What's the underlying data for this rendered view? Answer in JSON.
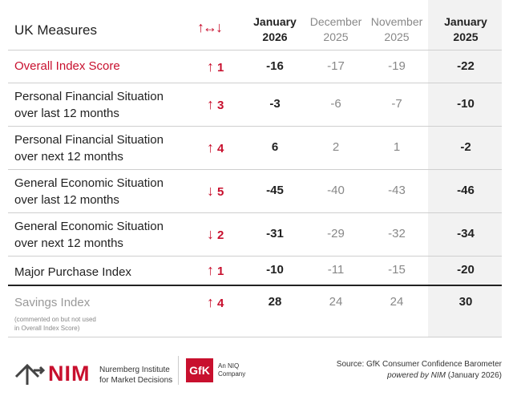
{
  "chart_data": {
    "type": "table",
    "title": "UK Measures",
    "change_header": "↑↔↓",
    "columns": [
      {
        "line1": "January",
        "line2": "2026",
        "bold": true
      },
      {
        "line1": "December",
        "line2": "2025",
        "bold": false
      },
      {
        "line1": "November",
        "line2": "2025",
        "bold": false
      },
      {
        "line1": "January",
        "line2": "2025",
        "bold": true
      }
    ],
    "rows": [
      {
        "label1": "Overall Index Score",
        "label2": "",
        "direction": "up",
        "change": "1",
        "values": [
          "-16",
          "-17",
          "-19",
          "-22"
        ]
      },
      {
        "label1": "Personal Financial Situation",
        "label2": "over last 12 months",
        "direction": "up",
        "change": "3",
        "values": [
          "-3",
          "-6",
          "-7",
          "-10"
        ]
      },
      {
        "label1": "Personal Financial Situation",
        "label2": "over next 12 months",
        "direction": "up",
        "change": "4",
        "values": [
          "6",
          "2",
          "1",
          "-2"
        ]
      },
      {
        "label1": "General Economic Situation",
        "label2": "over last 12 months",
        "direction": "down",
        "change": "5",
        "values": [
          "-45",
          "-40",
          "-43",
          "-46"
        ]
      },
      {
        "label1": "General Economic Situation",
        "label2": "over next 12 months",
        "direction": "down",
        "change": "2",
        "values": [
          "-31",
          "-29",
          "-32",
          "-34"
        ]
      },
      {
        "label1": "Major Purchase Index",
        "label2": "",
        "direction": "up",
        "change": "1",
        "values": [
          "-10",
          "-11",
          "-15",
          "-20"
        ]
      },
      {
        "label1": "Savings Index",
        "label2": "",
        "direction": "up",
        "change": "4",
        "values": [
          "28",
          "24",
          "24",
          "30"
        ],
        "note1": "(commented on but not used",
        "note2": "in Overall Index Score)"
      }
    ]
  },
  "footer": {
    "brand": "NIM",
    "brand_line1": "Nuremberg Institute",
    "brand_line2": "for Market Decisions",
    "gfk": "GfK",
    "niq_line1": "An NIQ",
    "niq_line2": "Company",
    "source_line1": "Source: GfK Consumer Confidence Barometer",
    "source_powered": "powered by NIM",
    "source_date": " (January 2026)"
  }
}
